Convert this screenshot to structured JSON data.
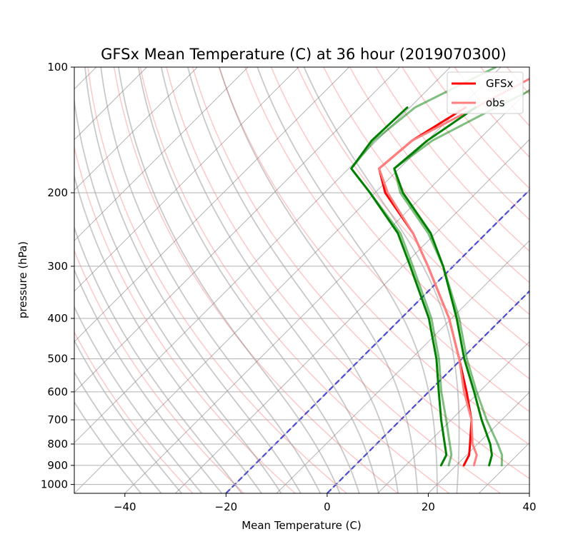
{
  "chart_data": {
    "type": "line",
    "title": "GFSx Mean Temperature (C) at 36 hour (2019070300)",
    "xlabel": "Mean Temperature (C)",
    "ylabel": "pressure (hPa)",
    "xlim": [
      -50,
      40
    ],
    "ylim": [
      1050,
      100
    ],
    "y_scale": "log",
    "xticks": [
      -40,
      -20,
      0,
      20,
      40
    ],
    "yticks": [
      100,
      200,
      300,
      400,
      500,
      600,
      700,
      800,
      900,
      1000
    ],
    "grid": true,
    "legend_position": "top-right",
    "skewt": true,
    "series": [
      {
        "name": "GFSx",
        "color": "#ff0000",
        "pressure": [
          900,
          850,
          800,
          700,
          600,
          500,
          400,
          300,
          250,
          200,
          175,
          150,
          125
        ],
        "temperature": [
          21.5,
          20.5,
          18.5,
          14.0,
          7.5,
          -0.5,
          -10.5,
          -25.0,
          -34.5,
          -48.0,
          -54.0,
          -53.0,
          -49.0
        ]
      },
      {
        "name": "obs",
        "color": "#ff7f7f",
        "pressure": [
          900,
          850,
          800,
          700,
          600,
          500,
          400,
          300,
          250,
          200,
          175,
          150,
          125,
          100
        ],
        "temperature": [
          23.5,
          22.0,
          19.0,
          14.0,
          7.0,
          -0.5,
          -10.5,
          -25.0,
          -34.5,
          -47.5,
          -54.0,
          -53.0,
          -47.0,
          -40.0
        ]
      },
      {
        "color": "#008000",
        "pressure": [
          900,
          850,
          800,
          700,
          600,
          500,
          400,
          300,
          250,
          200,
          175,
          150,
          125
        ],
        "temperature": [
          26.5,
          25.0,
          22.5,
          16.0,
          9.0,
          0.5,
          -9.0,
          -22.0,
          -31.0,
          -44.5,
          -51.0,
          -50.0,
          -47.0
        ]
      },
      {
        "color": "#008000",
        "pressure": [
          900,
          850,
          800,
          700,
          600,
          500,
          400,
          300,
          250,
          200,
          175,
          150,
          125
        ],
        "temperature": [
          17.0,
          16.0,
          13.5,
          8.0,
          2.0,
          -5.0,
          -14.5,
          -28.5,
          -37.5,
          -51.0,
          -59.5,
          -61.0,
          -60.5
        ]
      },
      {
        "color": "#008000",
        "opacity": 0.5,
        "pressure": [
          900,
          850,
          800,
          700,
          600,
          500,
          400,
          300,
          250,
          200,
          175,
          150,
          125,
          100
        ],
        "temperature": [
          29.0,
          27.0,
          24.0,
          17.0,
          9.5,
          1.0,
          -8.5,
          -22.0,
          -31.5,
          -45.0,
          -51.0,
          -49.0,
          -43.0,
          -35.0
        ]
      },
      {
        "color": "#008000",
        "opacity": 0.5,
        "pressure": [
          900,
          850,
          800,
          700,
          600,
          500,
          400,
          300,
          250,
          200,
          175,
          150,
          125,
          100
        ],
        "temperature": [
          18.5,
          17.0,
          14.5,
          9.0,
          2.5,
          -4.5,
          -14.0,
          -28.0,
          -37.0,
          -51.0,
          -59.5,
          -60.5,
          -59.0,
          -51.0
        ]
      }
    ],
    "reference_lines": [
      {
        "kind": "isotherm-dashed",
        "color": "#0000ff",
        "temperature": [
          -20,
          0
        ]
      },
      {
        "kind": "isotherm-gray",
        "color": "#999999",
        "temperature": [
          -150,
          -140,
          -130,
          -120,
          -110,
          -100,
          -90,
          -80,
          -70,
          -60,
          -50,
          -40,
          -30,
          -20,
          -10,
          0,
          10,
          20,
          30,
          40,
          50
        ]
      },
      {
        "kind": "dry-adiabat",
        "color": "#ff0000",
        "theta_c": [
          -30,
          -20,
          -10,
          0,
          10,
          20,
          30,
          40,
          50,
          60,
          70,
          80,
          90,
          100,
          110,
          120,
          130,
          140,
          150,
          160
        ]
      },
      {
        "kind": "moist-adiabat",
        "color": "#777777",
        "theta_w_c": [
          -40,
          -36,
          -32,
          -28,
          -24,
          -20,
          -16,
          -12,
          -8,
          -4,
          0,
          4,
          8,
          12,
          16,
          20,
          24
        ]
      }
    ]
  }
}
